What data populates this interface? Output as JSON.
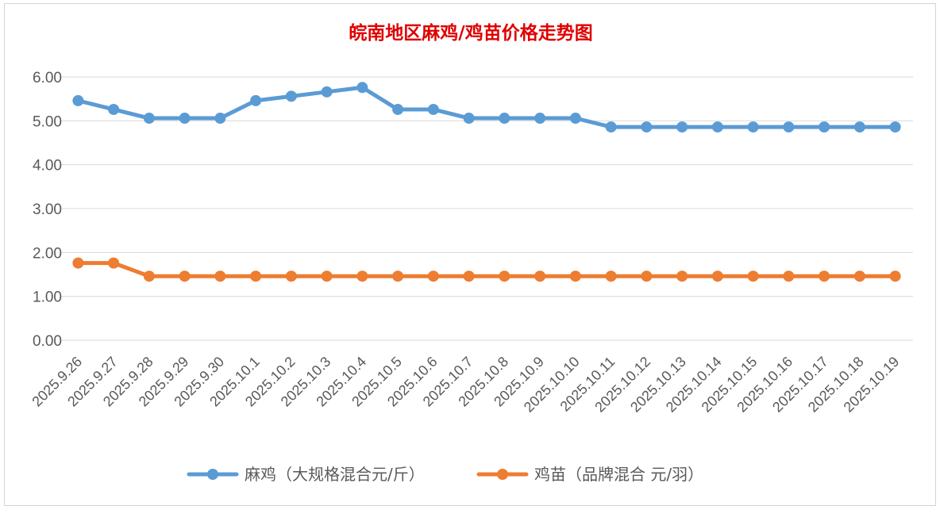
{
  "chart_data": {
    "type": "line",
    "title": "皖南地区麻鸡/鸡苗价格走势图",
    "categories": [
      "2025.9.26",
      "2025.9.27",
      "2025.9.28",
      "2025.9.29",
      "2025.9.30",
      "2025.10.1",
      "2025.10.2",
      "2025.10.3",
      "2025.10.4",
      "2025.10.5",
      "2025.10.6",
      "2025.10.7",
      "2025.10.8",
      "2025.10.9",
      "2025.10.10",
      "2025.10.11",
      "2025.10.12",
      "2025.10.13",
      "2025.10.14",
      "2025.10.15",
      "2025.10.16",
      "2025.10.17",
      "2025.10.18",
      "2025.10.19"
    ],
    "series": [
      {
        "name": "麻鸡（大规格混合元/斤）",
        "color": "#5b9bd5",
        "values": [
          5.46,
          5.26,
          5.06,
          5.06,
          5.06,
          5.46,
          5.56,
          5.66,
          5.76,
          5.26,
          5.26,
          5.06,
          5.06,
          5.06,
          5.06,
          4.86,
          4.86,
          4.86,
          4.86,
          4.86,
          4.86,
          4.86,
          4.86,
          4.86
        ]
      },
      {
        "name": "鸡苗（品牌混合 元/羽）",
        "color": "#ed7d31",
        "values": [
          1.76,
          1.76,
          1.46,
          1.46,
          1.46,
          1.46,
          1.46,
          1.46,
          1.46,
          1.46,
          1.46,
          1.46,
          1.46,
          1.46,
          1.46,
          1.46,
          1.46,
          1.46,
          1.46,
          1.46,
          1.46,
          1.46,
          1.46,
          1.46
        ]
      }
    ],
    "yticks": [
      "0.00",
      "1.00",
      "2.00",
      "3.00",
      "4.00",
      "5.00",
      "6.00"
    ],
    "ylim": [
      0,
      6
    ],
    "grid": true,
    "legend_position": "bottom"
  }
}
